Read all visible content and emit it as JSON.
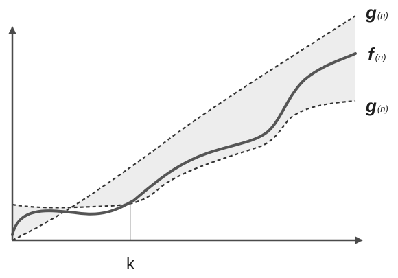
{
  "labels": {
    "upper_bound": {
      "main": "g",
      "sub": "(n)"
    },
    "function": {
      "main": "f",
      "sub": "(n)"
    },
    "lower_bound": {
      "main": "g",
      "sub": "(n)"
    },
    "threshold": "k"
  },
  "colors": {
    "axis": "#4a4a4a",
    "curve": "#555555",
    "dashed": "#333333",
    "band_fill": "#ededed",
    "guide": "#bdbdbd"
  }
}
